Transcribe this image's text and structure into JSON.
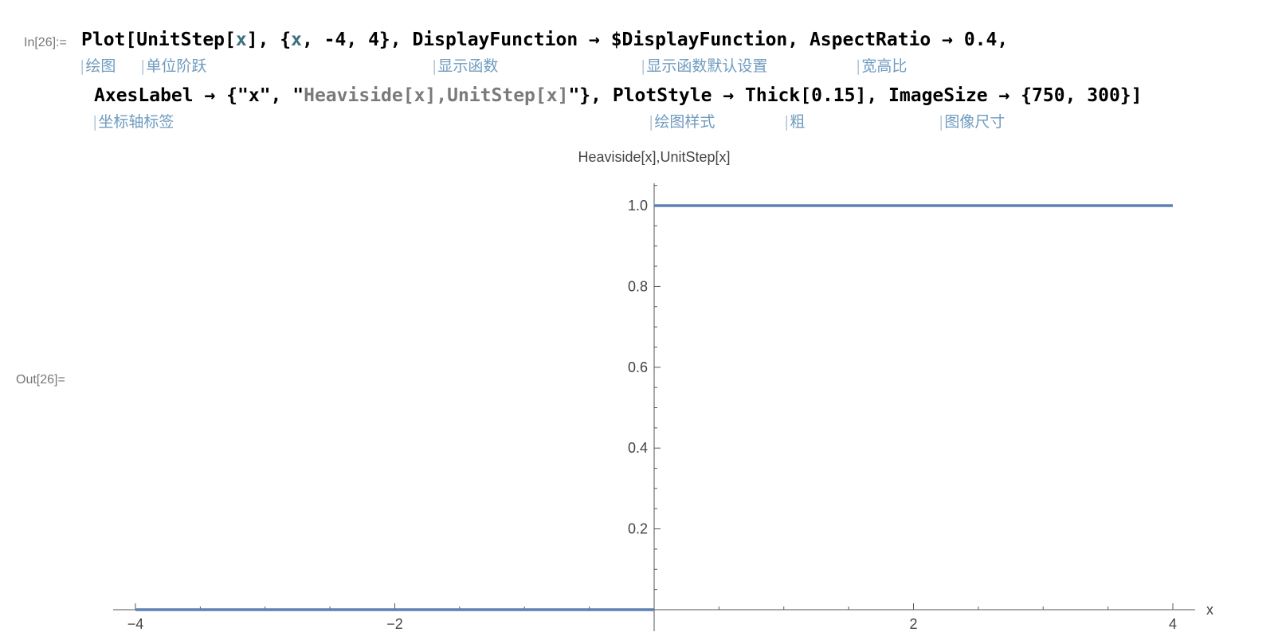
{
  "notebook": {
    "input_label": "In[26]:=",
    "output_label": "Out[26]=",
    "code_line1": [
      {
        "t": "Plot[UnitStep[",
        "c": "kw"
      },
      {
        "t": "x",
        "c": "var"
      },
      {
        "t": "], {",
        "c": "kw"
      },
      {
        "t": "x",
        "c": "var"
      },
      {
        "t": ", -4, 4}, DisplayFunction → $DisplayFunction, AspectRatio → 0.4,",
        "c": "kw"
      }
    ],
    "code_line2": [
      {
        "t": "AxesLabel → {\"x\", \"",
        "c": "kw"
      },
      {
        "t": "Heaviside[x],UnitStep[x]",
        "c": "str"
      },
      {
        "t": "\"}, PlotStyle → Thick[0.15], ImageSize → {750, 300}]",
        "c": "kw"
      }
    ],
    "annotations_line1": [
      "绘图",
      "单位阶跃",
      "显示函数",
      "显示函数默认设置",
      "宽高比"
    ],
    "annotations_line2": [
      "坐标轴标签",
      "绘图样式",
      "粗",
      "图像尺寸"
    ]
  },
  "chart_data": {
    "type": "line",
    "function": "UnitStep[x]",
    "series": [
      {
        "x": [
          -4,
          0,
          0,
          4
        ],
        "y": [
          0,
          0,
          1,
          1
        ]
      }
    ],
    "xlim": [
      -4,
      4
    ],
    "ylim": [
      0,
      1.05
    ],
    "x_ticks": [
      -4,
      -2,
      2,
      4
    ],
    "x_tick_labels": [
      "−4",
      "−2",
      "2",
      "4"
    ],
    "y_ticks": [
      0.2,
      0.4,
      0.6,
      0.8,
      1.0
    ],
    "y_tick_labels": [
      "0.2",
      "0.4",
      "0.6",
      "0.8",
      "1.0"
    ],
    "xlabel": "x",
    "ylabel": "Heaviside[x],UnitStep[x]",
    "line_color": "#5e81b5",
    "grid": false,
    "legend": "none"
  }
}
